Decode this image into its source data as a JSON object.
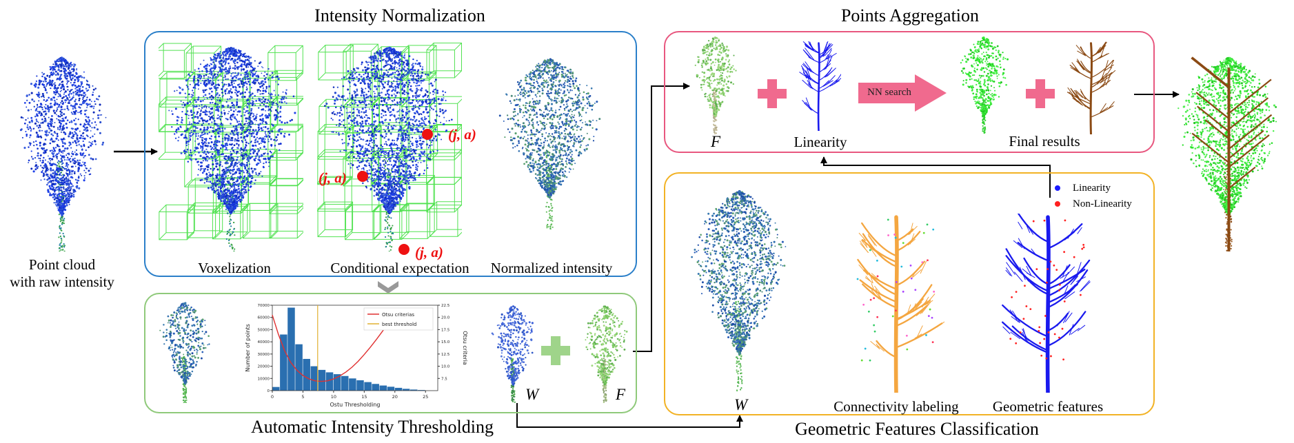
{
  "titles": {
    "intensity_normalization": "Intensity Normalization",
    "points_aggregation": "Points Aggregation",
    "automatic_thresholding": "Automatic Intensity Thresholding",
    "geometric_classification": "Geometric Features Classification"
  },
  "input": {
    "label_line1": "Point cloud",
    "label_line2": "with raw intensity"
  },
  "normalization": {
    "voxelization": "Voxelization",
    "conditional_expectation": "Conditional expectation",
    "normalized_intensity": "Normalized intensity",
    "point_label": "(j, a)"
  },
  "aggregation": {
    "F_label": "F",
    "linearity_label": "Linearity",
    "nn_search": "NN search",
    "final_results": "Final results"
  },
  "thresholding": {
    "W_label": "W",
    "F_label": "F"
  },
  "geometric": {
    "W_label": "W",
    "connectivity_labeling": "Connectivity labeling",
    "geometric_features": "Geometric features",
    "legend": [
      {
        "label": "Linearity",
        "color": "#1a1aff"
      },
      {
        "label": "Non-Linearity",
        "color": "#ff2020"
      }
    ]
  },
  "colors": {
    "blue_box": "#2a7fc9",
    "pink_box": "#e8577f",
    "green_box": "#8fc97a",
    "yellow_box": "#f2b224",
    "arrow_pink": "#f06a8e",
    "plus_pink": "#f06a8e",
    "plus_green": "#9fd48a",
    "red_point": "#ee1111"
  },
  "chart_data": {
    "type": "bar",
    "title": "",
    "xlabel": "Ostu Thresholding",
    "ylabel": "Number of points",
    "y2label": "Otsu criteria",
    "xlim": [
      0,
      27
    ],
    "ylim": [
      0,
      70000
    ],
    "y2lim": [
      5.0,
      22.5
    ],
    "xticks": [
      0,
      5,
      10,
      15,
      20,
      25
    ],
    "yticks": [
      0,
      10000,
      20000,
      30000,
      40000,
      50000,
      60000,
      70000
    ],
    "y2ticks": [
      7.5,
      10.0,
      12.5,
      15.0,
      17.5,
      20.0,
      22.5
    ],
    "bin_width": 1.25,
    "bin_starts": [
      0,
      1.25,
      2.5,
      3.75,
      5,
      6.25,
      7.5,
      8.75,
      10,
      11.25,
      12.5,
      13.75,
      15,
      16.25,
      17.5,
      18.75,
      20,
      21.25,
      22.5,
      23.75
    ],
    "values": [
      3000,
      46000,
      68000,
      38000,
      26000,
      20000,
      17000,
      15000,
      13500,
      12000,
      10000,
      8500,
      7000,
      5500,
      4200,
      3200,
      2300,
      1500,
      900,
      500
    ],
    "series": [
      {
        "name": "Otsu criterias",
        "color": "#e03030",
        "x": [
          0,
          1,
          2,
          3,
          4,
          5,
          6,
          7,
          8,
          9,
          10,
          11,
          12,
          13,
          14,
          15,
          16,
          17,
          18,
          19
        ],
        "y": [
          20.5,
          16.5,
          13.2,
          10.8,
          9.2,
          8.1,
          7.4,
          7.0,
          6.9,
          7.0,
          7.4,
          8.0,
          8.8,
          9.8,
          11.0,
          12.4,
          13.9,
          15.5,
          17.2,
          19.0
        ]
      },
      {
        "name": "best threshold",
        "color": "#e0b030",
        "vline": 7.4
      }
    ],
    "legend_position": "top-right"
  }
}
